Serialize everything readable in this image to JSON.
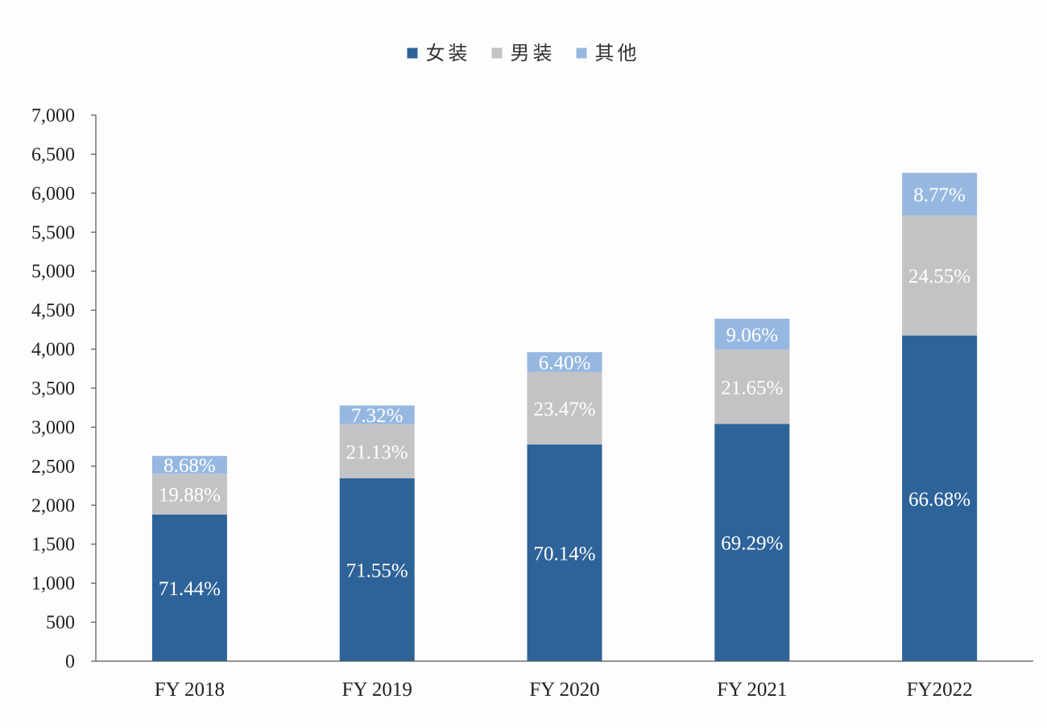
{
  "chart_data": {
    "type": "bar",
    "stacked": true,
    "title": "",
    "xlabel": "",
    "ylabel": "",
    "ylim": [
      0,
      7000
    ],
    "yticks": [
      0,
      500,
      1000,
      1500,
      2000,
      2500,
      3000,
      3500,
      4000,
      4500,
      5000,
      5500,
      6000,
      6500,
      7000
    ],
    "ytick_labels": [
      "0",
      "500",
      "1,000",
      "1,500",
      "2,000",
      "2,500",
      "3,000",
      "3,500",
      "4,000",
      "4,500",
      "5,000",
      "5,500",
      "6,000",
      "6,500",
      "7,000"
    ],
    "categories": [
      "FY 2018",
      "FY 2019",
      "FY 2020",
      "FY 2021",
      "FY2022"
    ],
    "legend_position": "top-center",
    "grid": false,
    "series": [
      {
        "name": "女装",
        "color": "#2e6399",
        "values": [
          1880,
          2345,
          2778,
          3042,
          4175
        ],
        "labels": [
          "71.44%",
          "71.55%",
          "70.14%",
          "69.29%",
          "66.68%"
        ]
      },
      {
        "name": "男装",
        "color": "#c3c3c5",
        "values": [
          523,
          693,
          930,
          951,
          1537
        ],
        "labels": [
          "19.88%",
          "21.13%",
          "23.47%",
          "21.65%",
          "24.55%"
        ]
      },
      {
        "name": "其他",
        "color": "#96b8e0",
        "values": [
          228,
          240,
          254,
          398,
          549
        ],
        "labels": [
          "8.68%",
          "7.32%",
          "6.40%",
          "9.06%",
          "8.77%"
        ]
      }
    ]
  }
}
